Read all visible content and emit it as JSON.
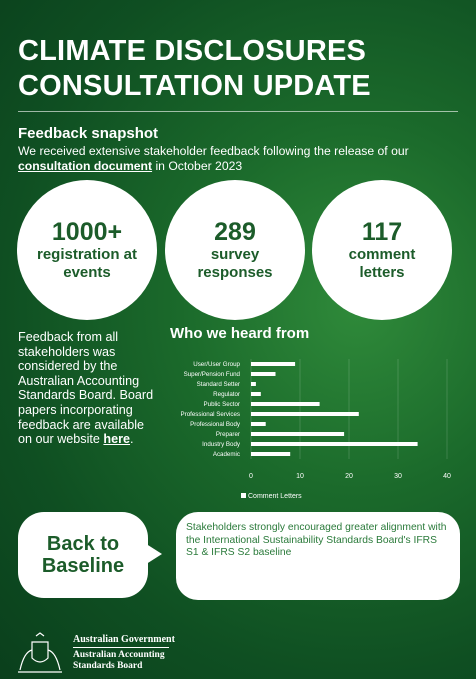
{
  "header": {
    "title_line1": "CLIMATE DISCLOSURES",
    "title_line2": "CONSULTATION UPDATE"
  },
  "snapshot": {
    "heading": "Feedback snapshot",
    "text_before": "We received extensive stakeholder feedback following the release of our ",
    "link": "consultation document",
    "text_after": " in October 2023"
  },
  "stats": [
    {
      "number": "1000+",
      "label": "registration at events"
    },
    {
      "number": "289",
      "label": "survey responses"
    },
    {
      "number": "117",
      "label": "comment letters"
    }
  ],
  "paragraph": {
    "text": "Feedback from all stakeholders was considered by the Australian Accounting Standards Board. Board papers incorporating feedback are available on our website ",
    "link": "here",
    "end": "."
  },
  "chart_data": {
    "type": "bar",
    "orientation": "horizontal",
    "title": "Who we heard from",
    "categories": [
      "User/User Group",
      "Super/Pension Fund",
      "Standard Setter",
      "Regulator",
      "Public Sector",
      "Professional Services",
      "Professional Body",
      "Preparer",
      "Industry Body",
      "Academic"
    ],
    "series": [
      {
        "name": "Comment Letters",
        "color": "#ffffff",
        "values": [
          9,
          5,
          1,
          2,
          14,
          22,
          3,
          19,
          34,
          8
        ]
      }
    ],
    "xlim": [
      0,
      40
    ],
    "xticks": [
      0,
      10,
      20,
      30,
      40
    ],
    "grid": true,
    "legend": "bottom"
  },
  "callout": {
    "button_line1": "Back to",
    "button_line2": "Baseline",
    "text": "Stakeholders strongly encouraged greater alignment with the International Sustainability Standards Board's IFRS S1 & IFRS S2 baseline"
  },
  "footer": {
    "line1": "Australian Government",
    "line2": "Australian Accounting",
    "line3": "Standards Board"
  }
}
